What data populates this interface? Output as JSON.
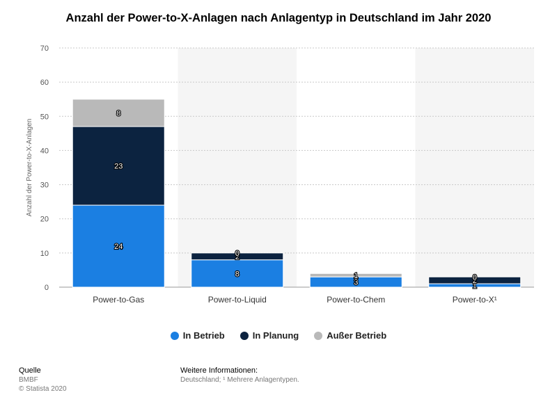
{
  "title": "Anzahl der Power-to-X-Anlagen nach Anlagentyp in Deutschland im Jahr 2020",
  "colors": {
    "in_betrieb": "#1b7fe2",
    "in_planung": "#0c2340",
    "ausser_betrieb": "#b9b9b9"
  },
  "chart_data": {
    "type": "bar",
    "stacked": true,
    "title": "Anzahl der Power-to-X-Anlagen nach Anlagentyp in Deutschland im Jahr 2020",
    "xlabel": "",
    "ylabel": "Anzahl der Power-to-X-Anlagen",
    "ylim": [
      0,
      70
    ],
    "yticks": [
      0,
      10,
      20,
      30,
      40,
      50,
      60,
      70
    ],
    "categories": [
      "Power-to-Gas",
      "Power-to-Liquid",
      "Power-to-Chem",
      "Power-to-X¹"
    ],
    "series": [
      {
        "name": "In Betrieb",
        "values": [
          24,
          8,
          3,
          1
        ]
      },
      {
        "name": "In Planung",
        "values": [
          23,
          2,
          0,
          2
        ]
      },
      {
        "name": "Außer Betrieb",
        "values": [
          8,
          0,
          1,
          0
        ]
      }
    ],
    "legend_position": "bottom"
  },
  "legend": {
    "items": [
      "In Betrieb",
      "In Planung",
      "Außer Betrieb"
    ]
  },
  "footer": {
    "source_label": "Quelle",
    "source_name": "BMBF",
    "copyright": "© Statista 2020",
    "info_label": "Weitere Informationen:",
    "info_text": "Deutschland; ¹ Mehrere Anlagentypen."
  }
}
